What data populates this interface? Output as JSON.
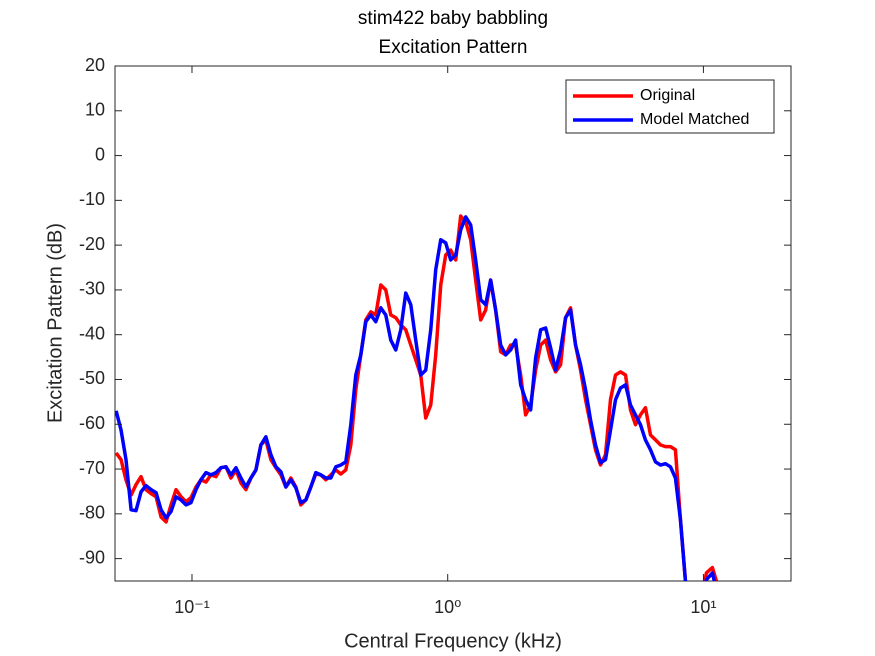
{
  "chart_data": {
    "type": "line",
    "title": "stim422 baby babbling",
    "subtitle": "Excitation Pattern",
    "x_label": "Central Frequency (kHz)",
    "y_label": "Excitation Pattern (dB)",
    "x_scale": "log",
    "xlim": [
      0.05,
      22
    ],
    "ylim": [
      -95,
      20
    ],
    "xticks": [
      {
        "value": 0.1,
        "label": "10⁻¹"
      },
      {
        "value": 1,
        "label": "10⁰"
      },
      {
        "value": 10,
        "label": "10¹"
      }
    ],
    "yticks": [
      -90,
      -80,
      -70,
      -60,
      -50,
      -40,
      -30,
      -20,
      -10,
      0,
      10,
      20
    ],
    "grid": false,
    "legend": "upper-right",
    "x": [
      0.0505,
      0.0528,
      0.0552,
      0.0578,
      0.0604,
      0.0632,
      0.0661,
      0.0692,
      0.0724,
      0.0757,
      0.0792,
      0.0828,
      0.0866,
      0.0906,
      0.0948,
      0.0991,
      0.1037,
      0.1084,
      0.1134,
      0.1186,
      0.1241,
      0.1298,
      0.1358,
      0.142,
      0.1486,
      0.1554,
      0.1625,
      0.17,
      0.1778,
      0.186,
      0.1945,
      0.2035,
      0.2129,
      0.2227,
      0.2329,
      0.2436,
      0.2548,
      0.2665,
      0.2788,
      0.2916,
      0.305,
      0.319,
      0.3337,
      0.3491,
      0.3652,
      0.3819,
      0.3995,
      0.4179,
      0.4371,
      0.4573,
      0.4783,
      0.5003,
      0.5233,
      0.5474,
      0.5726,
      0.599,
      0.6265,
      0.6553,
      0.6855,
      0.7171,
      0.7499,
      0.7845,
      0.8205,
      0.8584,
      0.8977,
      0.9391,
      0.9822,
      1.027,
      1.075,
      1.124,
      1.176,
      1.23,
      1.286,
      1.346,
      1.407,
      1.472,
      1.54,
      1.611,
      1.685,
      1.762,
      1.843,
      1.929,
      2.017,
      2.11,
      2.207,
      2.309,
      2.415,
      2.525,
      2.642,
      2.763,
      2.89,
      3.023,
      3.162,
      3.307,
      3.46,
      3.618,
      3.784,
      3.959,
      4.141,
      4.331,
      4.532,
      4.74,
      4.958,
      5.185,
      5.424,
      5.672,
      5.932,
      6.209,
      6.494,
      6.792,
      7.105,
      7.431,
      7.772,
      8.13,
      8.504,
      8.894,
      9.734,
      10.27,
      10.84,
      11.24
    ],
    "series": [
      {
        "name": "Original",
        "color": "#ff0000",
        "values": [
          -66.4,
          -67.9,
          -72.4,
          -75.8,
          -73.5,
          -71.7,
          -74.6,
          -75.5,
          -76.2,
          -80.7,
          -81.8,
          -78.0,
          -74.6,
          -76.2,
          -77.3,
          -76.4,
          -74.0,
          -72.4,
          -72.9,
          -71.3,
          -71.7,
          -69.7,
          -69.5,
          -72.0,
          -70.2,
          -73.1,
          -74.6,
          -72.0,
          -70.2,
          -64.6,
          -63.5,
          -67.9,
          -69.7,
          -71.3,
          -74.0,
          -72.0,
          -74.0,
          -78.0,
          -76.9,
          -74.0,
          -71.1,
          -71.3,
          -72.4,
          -71.3,
          -70.2,
          -71.1,
          -70.2,
          -64.6,
          -52.3,
          -44.5,
          -36.7,
          -34.9,
          -35.6,
          -28.9,
          -30.0,
          -35.6,
          -36.2,
          -37.8,
          -38.9,
          -42.3,
          -45.6,
          -49.0,
          -58.6,
          -55.7,
          -44.5,
          -28.9,
          -22.2,
          -21.1,
          -23.3,
          -13.5,
          -14.8,
          -18.8,
          -27.8,
          -36.7,
          -34.5,
          -27.8,
          -34.5,
          -43.8,
          -44.5,
          -42.3,
          -42.3,
          -49.0,
          -57.9,
          -55.7,
          -47.9,
          -42.3,
          -41.2,
          -45.6,
          -48.3,
          -46.7,
          -36.2,
          -34.0,
          -42.3,
          -47.9,
          -54.5,
          -60.1,
          -65.7,
          -69.1,
          -66.8,
          -54.5,
          -49.0,
          -48.3,
          -49.0,
          -56.8,
          -60.1,
          -57.9,
          -56.3,
          -62.4,
          -63.5,
          -64.6,
          -65.0,
          -65.0,
          -65.7,
          -81.3,
          -95.0,
          -100,
          -100,
          -93.2,
          -92.0,
          -95.0
        ]
      },
      {
        "name": "Model Matched",
        "color": "#0000ff",
        "values": [
          -57.0,
          -61.3,
          -67.9,
          -79.1,
          -79.3,
          -75.1,
          -73.7,
          -74.6,
          -75.3,
          -79.1,
          -80.9,
          -79.5,
          -76.2,
          -76.9,
          -78.0,
          -77.5,
          -74.6,
          -72.4,
          -70.8,
          -71.3,
          -70.8,
          -69.7,
          -69.5,
          -71.3,
          -69.7,
          -72.0,
          -74.0,
          -72.0,
          -70.2,
          -64.6,
          -62.8,
          -66.8,
          -69.5,
          -70.6,
          -74.0,
          -72.4,
          -74.2,
          -77.5,
          -76.9,
          -74.0,
          -70.8,
          -71.3,
          -72.0,
          -72.0,
          -69.5,
          -69.1,
          -68.4,
          -60.1,
          -49.0,
          -44.5,
          -37.1,
          -35.6,
          -37.1,
          -34.0,
          -35.6,
          -41.2,
          -43.4,
          -38.9,
          -30.7,
          -33.3,
          -41.2,
          -49.0,
          -47.9,
          -38.9,
          -25.5,
          -18.8,
          -19.5,
          -23.3,
          -22.2,
          -16.6,
          -13.7,
          -15.5,
          -23.3,
          -32.2,
          -33.3,
          -27.8,
          -34.5,
          -42.3,
          -44.5,
          -43.4,
          -41.2,
          -51.2,
          -54.5,
          -56.8,
          -45.2,
          -38.9,
          -38.5,
          -42.9,
          -47.9,
          -43.4,
          -36.2,
          -34.5,
          -42.3,
          -46.7,
          -52.3,
          -59.0,
          -64.6,
          -68.6,
          -67.9,
          -61.3,
          -54.5,
          -51.9,
          -51.2,
          -55.7,
          -57.9,
          -60.1,
          -63.5,
          -65.7,
          -68.4,
          -69.1,
          -68.8,
          -69.5,
          -72.0,
          -81.3,
          -95.0,
          -100,
          -100,
          -94.7,
          -93.2,
          -97.0
        ]
      }
    ]
  }
}
